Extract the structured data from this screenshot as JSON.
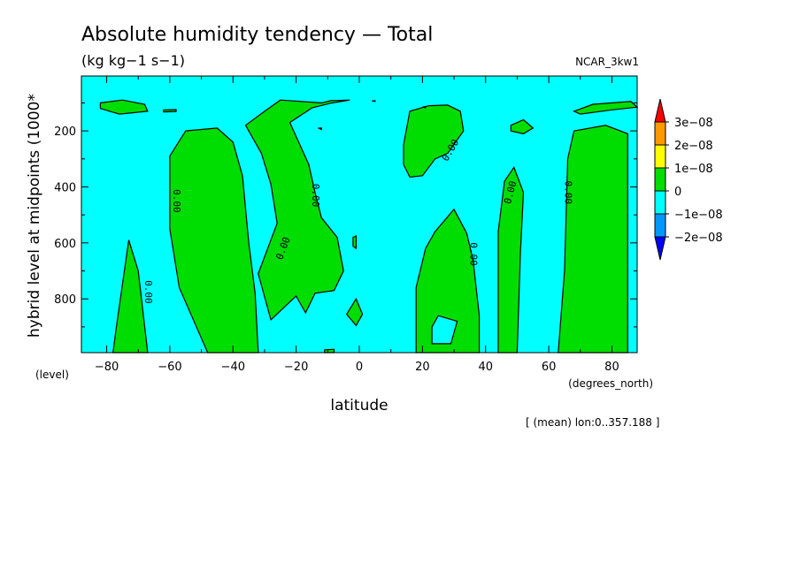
{
  "chart_data": {
    "type": "contour",
    "title": "Absolute humidity tendency — Total",
    "units": "(kg kg−1 s−1)",
    "dataset": "NCAR_3kw1",
    "xlabel": "latitude",
    "x_units": "(degrees_north)",
    "ylabel": "hybrid level at midpoints (1000*",
    "y_units": "(level)",
    "annotation": "[ (mean) lon:0..357.188 ]",
    "xlim": [
      -88,
      88
    ],
    "ylim": [
      992,
      4
    ],
    "x_ticks": [
      -80,
      -60,
      -40,
      -20,
      0,
      20,
      40,
      60,
      80
    ],
    "x_tick_labels": [
      "−80",
      "−60",
      "−40",
      "−20",
      "0",
      "20",
      "40",
      "60",
      "80"
    ],
    "y_ticks": [
      200,
      400,
      600,
      800
    ],
    "y_tick_labels": [
      "200",
      "400",
      "600",
      "800"
    ],
    "contour_line_label": "0.00",
    "contour_line_value": 0,
    "colorbar": {
      "levels": [
        "3e−08",
        "2e−08",
        "1e−08",
        "0",
        "−1e−08",
        "−2e−08"
      ],
      "colors": [
        "#ff0000",
        "#ff9900",
        "#ffff00",
        "#00dd00",
        "#00ffff",
        "#0099ff",
        "#0000ff"
      ]
    },
    "background_color": "#00ffff",
    "positive_color": "#00dd00",
    "positive_regions": [
      {
        "name": "sh-polar-top",
        "points": [
          [
            -82,
            100
          ],
          [
            -75,
            90
          ],
          [
            -68,
            105
          ],
          [
            -67,
            130
          ],
          [
            -76,
            140
          ],
          [
            -82,
            120
          ]
        ]
      },
      {
        "name": "dash-a",
        "points": [
          [
            -62,
            125
          ],
          [
            -58,
            124
          ],
          [
            -58,
            131
          ],
          [
            -62,
            132
          ]
        ]
      },
      {
        "name": "sh-polar-low",
        "points": [
          [
            -77,
            905
          ],
          [
            -73,
            590
          ],
          [
            -70,
            700
          ],
          [
            -67,
            992
          ],
          [
            -78,
            992
          ]
        ]
      },
      {
        "name": "sh-midlat",
        "points": [
          [
            -60,
            290
          ],
          [
            -55,
            200
          ],
          [
            -45,
            190
          ],
          [
            -40,
            240
          ],
          [
            -37,
            360
          ],
          [
            -35,
            600
          ],
          [
            -33,
            780
          ],
          [
            -32,
            992
          ],
          [
            -48,
            992
          ],
          [
            -57,
            760
          ],
          [
            -60,
            550
          ]
        ]
      },
      {
        "name": "tropics-upper",
        "points": [
          [
            -36,
            180
          ],
          [
            -30,
            130
          ],
          [
            -25,
            90
          ],
          [
            -12,
            100
          ],
          [
            -9,
            92
          ],
          [
            -3,
            90
          ],
          [
            -9,
            101
          ],
          [
            -15,
            118
          ],
          [
            -22,
            170
          ],
          [
            -16,
            320
          ],
          [
            -14,
            420
          ],
          [
            -12,
            510
          ],
          [
            -7,
            580
          ],
          [
            -5,
            700
          ],
          [
            -8,
            770
          ],
          [
            -14,
            780
          ],
          [
            -17,
            850
          ],
          [
            -20,
            790
          ],
          [
            -28,
            875
          ],
          [
            -32,
            710
          ],
          [
            -26,
            530
          ],
          [
            -28,
            390
          ],
          [
            -31,
            280
          ]
        ]
      },
      {
        "name": "cross-a",
        "points": [
          [
            -13,
            190
          ],
          [
            -12,
            195
          ],
          [
            -12,
            190
          ]
        ]
      },
      {
        "name": "dot-a",
        "points": [
          [
            -2,
            580
          ],
          [
            -1,
            575
          ],
          [
            -1,
            620
          ],
          [
            -2,
            612
          ]
        ]
      },
      {
        "name": "diamond",
        "points": [
          [
            -1,
            800
          ],
          [
            1,
            855
          ],
          [
            -1,
            895
          ],
          [
            -4,
            855
          ]
        ]
      },
      {
        "name": "nh-upper",
        "points": [
          [
            14,
            250
          ],
          [
            16,
            130
          ],
          [
            22,
            110
          ],
          [
            28,
            108
          ],
          [
            32,
            130
          ],
          [
            33,
            200
          ],
          [
            28,
            280
          ],
          [
            24,
            300
          ],
          [
            20,
            360
          ],
          [
            16,
            365
          ],
          [
            14,
            320
          ]
        ]
      },
      {
        "name": "nh-midlevel",
        "points": [
          [
            18,
            992
          ],
          [
            18,
            760
          ],
          [
            21,
            620
          ],
          [
            24,
            560
          ],
          [
            30,
            480
          ],
          [
            34,
            565
          ],
          [
            36,
            660
          ],
          [
            38,
            860
          ],
          [
            38,
            992
          ]
        ]
      },
      {
        "name": "nh-hole",
        "points": [
          [
            23,
            900
          ],
          [
            25,
            860
          ],
          [
            31,
            880
          ],
          [
            29,
            960
          ],
          [
            23,
            960
          ]
        ],
        "fill": "#00ffff"
      },
      {
        "name": "dot-b",
        "points": [
          [
            -11,
            982
          ],
          [
            -8,
            980
          ],
          [
            -8,
            992
          ],
          [
            -11,
            992
          ]
        ]
      },
      {
        "name": "dash-b",
        "points": [
          [
            20,
            115
          ],
          [
            21,
            113
          ],
          [
            21,
            117
          ]
        ]
      },
      {
        "name": "eq-dot",
        "points": [
          [
            4,
            93
          ],
          [
            5,
            92
          ],
          [
            5,
            95
          ]
        ]
      },
      {
        "name": "nh-blob",
        "points": [
          [
            48,
            180
          ],
          [
            52,
            160
          ],
          [
            55,
            190
          ],
          [
            52,
            210
          ],
          [
            48,
            200
          ]
        ]
      },
      {
        "name": "nh-sub",
        "points": [
          [
            44,
            560
          ],
          [
            46,
            380
          ],
          [
            49,
            330
          ],
          [
            52,
            420
          ],
          [
            51,
            640
          ],
          [
            50,
            992
          ],
          [
            44,
            992
          ]
        ]
      },
      {
        "name": "nh-polar",
        "points": [
          [
            63,
            992
          ],
          [
            65,
            700
          ],
          [
            66,
            300
          ],
          [
            68,
            200
          ],
          [
            78,
            180
          ],
          [
            85,
            210
          ],
          [
            85,
            992
          ]
        ]
      },
      {
        "name": "nh-polar-top",
        "points": [
          [
            68,
            130
          ],
          [
            74,
            105
          ],
          [
            86,
            95
          ],
          [
            88,
            115
          ],
          [
            80,
            125
          ],
          [
            70,
            140
          ]
        ]
      }
    ],
    "contour_labels": [
      {
        "x": -58,
        "y": 450,
        "rotate": 90
      },
      {
        "x": -67,
        "y": 775,
        "rotate": 90
      },
      {
        "x": -24,
        "y": 620,
        "rotate": -70
      },
      {
        "x": -14,
        "y": 430,
        "rotate": 90
      },
      {
        "x": 29,
        "y": 270,
        "rotate": -60
      },
      {
        "x": 36,
        "y": 640,
        "rotate": 90
      },
      {
        "x": 48,
        "y": 420,
        "rotate": -75
      },
      {
        "x": 66,
        "y": 420,
        "rotate": 90
      }
    ]
  }
}
